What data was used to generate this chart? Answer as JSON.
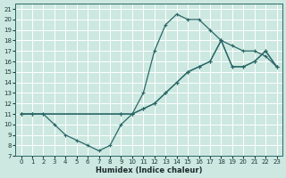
{
  "xlabel": "Humidex (Indice chaleur)",
  "bg_color": "#cce8e0",
  "grid_color": "#ffffff",
  "line_color": "#2a6868",
  "xlim": [
    -0.5,
    23.5
  ],
  "ylim": [
    7,
    21.5
  ],
  "xticks": [
    0,
    1,
    2,
    3,
    4,
    5,
    6,
    7,
    8,
    9,
    10,
    11,
    12,
    13,
    14,
    15,
    16,
    17,
    18,
    19,
    20,
    21,
    22,
    23
  ],
  "yticks": [
    7,
    8,
    9,
    10,
    11,
    12,
    13,
    14,
    15,
    16,
    17,
    18,
    19,
    20,
    21
  ],
  "curve_peak_x": [
    0,
    1,
    9,
    10,
    11,
    12,
    13,
    14,
    15,
    16,
    17,
    18,
    19,
    20,
    21,
    22,
    23
  ],
  "curve_peak_y": [
    11,
    11,
    11,
    11,
    13,
    17,
    19.5,
    20.5,
    20,
    20,
    19,
    18,
    17.5,
    17,
    17,
    16.5,
    15.5
  ],
  "curve_upper_x": [
    0,
    1,
    2,
    9,
    10,
    11,
    12,
    13,
    14,
    15,
    16,
    17,
    18,
    19,
    20,
    21,
    22,
    23
  ],
  "curve_upper_y": [
    11,
    11,
    11,
    11,
    11,
    11.5,
    12,
    13,
    14,
    15,
    15.5,
    16,
    18,
    15.5,
    15.5,
    16,
    17,
    15.5
  ],
  "curve_lower_x": [
    0,
    1,
    2,
    3,
    4,
    5,
    6,
    7,
    8,
    9,
    10,
    11,
    12,
    13,
    14,
    15,
    16,
    17,
    18,
    19,
    20,
    21,
    22,
    23
  ],
  "curve_lower_y": [
    11,
    11,
    11,
    10,
    9,
    8.5,
    8,
    7.5,
    8,
    10,
    11,
    11.5,
    12,
    13,
    14,
    15,
    15.5,
    16,
    18,
    15.5,
    15.5,
    16,
    17,
    15.5
  ]
}
